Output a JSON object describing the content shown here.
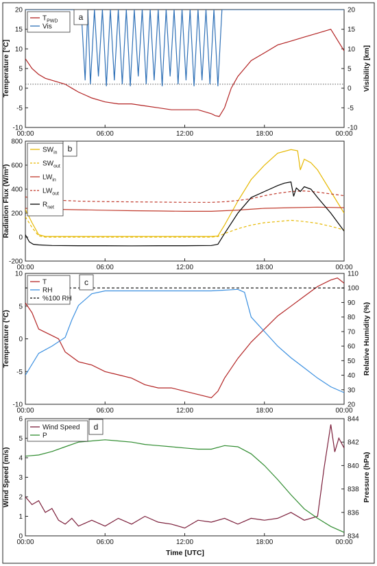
{
  "figure": {
    "xlabel": "Time [UTC]",
    "xticks": [
      "00:00",
      "06:00",
      "12:00",
      "18:00",
      "00:00"
    ]
  },
  "chart_data": [
    {
      "panel": "a",
      "type": "line",
      "ylabel": "Temperature [°C]",
      "ylabel_right": "Visibility [km]",
      "ylim": [
        -10,
        20
      ],
      "ylim_right": [
        -10,
        20
      ],
      "yticks": [
        -10,
        -5,
        0,
        5,
        10,
        15,
        20
      ],
      "yticks_right": [
        -10,
        -5,
        0,
        5,
        10,
        15,
        20
      ],
      "xlim_hours": [
        0,
        24
      ],
      "reference_line": {
        "value": 1,
        "axis": "right",
        "style": "dotted"
      },
      "legend": [
        "T_PWD",
        "Vis"
      ],
      "legend_position": "top-left",
      "series": [
        {
          "name": "T_PWD",
          "axis": "left",
          "color": "#b22222",
          "x": [
            0,
            0.5,
            1,
            1.5,
            2,
            2.5,
            3,
            3.5,
            4,
            5,
            6,
            7,
            8,
            9,
            10,
            11,
            12,
            13,
            14,
            14.3,
            14.6,
            15,
            15.5,
            16,
            16.5,
            17,
            18,
            19,
            20,
            21,
            22,
            23,
            24
          ],
          "y": [
            7.5,
            5,
            3.5,
            2.5,
            2,
            1.5,
            1,
            0,
            -1,
            -2.5,
            -3.5,
            -4,
            -4,
            -4.5,
            -5,
            -5.5,
            -5.5,
            -5.5,
            -6.5,
            -7,
            -7.2,
            -5,
            0,
            3,
            5,
            7,
            9,
            11,
            12,
            13,
            14,
            15,
            9.5
          ]
        },
        {
          "name": "Vis",
          "axis": "right",
          "color": "#2d6fb6",
          "description_note": "",
          "x": [
            0,
            4.2,
            4.5,
            4.7,
            4.9,
            5.2,
            5.5,
            5.8,
            6.1,
            6.4,
            6.7,
            7,
            7.3,
            7.6,
            7.9,
            8.2,
            8.5,
            8.8,
            9.1,
            9.4,
            9.7,
            10,
            10.3,
            10.6,
            10.9,
            11.2,
            11.5,
            11.8,
            12.1,
            12.4,
            12.7,
            13,
            13.3,
            13.6,
            13.9,
            14.2,
            14.5,
            14.8,
            15,
            24
          ],
          "y": [
            20,
            20,
            2,
            20,
            1,
            20,
            3,
            20,
            0.5,
            20,
            2,
            20,
            1,
            20,
            0.5,
            20,
            3,
            20,
            1,
            20,
            2,
            20,
            0.5,
            20,
            3,
            20,
            1,
            20,
            2,
            20,
            0.5,
            20,
            2,
            20,
            1,
            20,
            0.5,
            20,
            20,
            20
          ]
        }
      ]
    },
    {
      "panel": "b",
      "type": "line",
      "ylabel": "Radiation Flux (W/m²)",
      "ylim": [
        -200,
        800
      ],
      "yticks": [
        -200,
        0,
        200,
        400,
        600,
        800
      ],
      "xlim_hours": [
        0,
        24
      ],
      "legend": [
        "SW_in",
        "SW_out",
        "LW_in",
        "LW_out",
        "R_net"
      ],
      "legend_position": "top-left",
      "series": [
        {
          "name": "SW_in",
          "color": "#e6b800",
          "style": "solid",
          "x": [
            0,
            0.5,
            1,
            1.5,
            14,
            14.5,
            15,
            16,
            17,
            18,
            19,
            20,
            20.5,
            20.7,
            21,
            21.5,
            22,
            23,
            24
          ],
          "y": [
            230,
            120,
            20,
            5,
            5,
            10,
            100,
            300,
            480,
            600,
            700,
            730,
            720,
            560,
            650,
            620,
            560,
            380,
            200
          ]
        },
        {
          "name": "SW_out",
          "color": "#e6b800",
          "style": "dashed",
          "x": [
            0,
            0.5,
            1,
            1.5,
            14,
            14.5,
            15,
            16,
            17,
            18,
            19,
            20,
            21,
            22,
            23,
            24
          ],
          "y": [
            170,
            80,
            10,
            0,
            0,
            5,
            30,
            70,
            100,
            120,
            130,
            140,
            130,
            115,
            90,
            60
          ]
        },
        {
          "name": "LW_in",
          "color": "#c0392b",
          "style": "solid",
          "x": [
            0,
            2,
            4,
            6,
            8,
            10,
            12,
            14,
            16,
            18,
            20,
            22,
            24
          ],
          "y": [
            240,
            232,
            228,
            224,
            220,
            218,
            215,
            215,
            225,
            240,
            245,
            250,
            245
          ]
        },
        {
          "name": "LW_out",
          "color": "#c0392b",
          "style": "dashed",
          "x": [
            0,
            1,
            2,
            4,
            6,
            8,
            10,
            12,
            14,
            15,
            16,
            17,
            18,
            19,
            20,
            21,
            22,
            23,
            24
          ],
          "y": [
            335,
            318,
            310,
            300,
            296,
            294,
            292,
            290,
            290,
            295,
            305,
            320,
            345,
            365,
            380,
            385,
            375,
            360,
            345
          ]
        },
        {
          "name": "R_net",
          "color": "#000000",
          "style": "solid",
          "x": [
            0,
            0.3,
            0.6,
            1,
            2,
            4,
            6,
            8,
            10,
            12,
            14,
            14.5,
            15,
            16,
            17,
            18,
            19,
            19.5,
            20,
            20.2,
            20.4,
            20.7,
            21,
            21.5,
            22,
            23,
            24
          ],
          "y": [
            20,
            -40,
            -60,
            -65,
            -70,
            -72,
            -72,
            -73,
            -72,
            -72,
            -70,
            -60,
            30,
            200,
            330,
            380,
            430,
            450,
            460,
            340,
            410,
            380,
            420,
            400,
            330,
            200,
            50
          ]
        }
      ]
    },
    {
      "panel": "c",
      "type": "line",
      "ylabel": "Temperature (°C)",
      "ylabel_right": "Relative Humidity (%)",
      "ylim": [
        -10,
        10
      ],
      "ylim_right": [
        20,
        110
      ],
      "yticks": [
        -10,
        -5,
        0,
        5,
        10
      ],
      "yticks_right": [
        20,
        30,
        40,
        50,
        60,
        70,
        80,
        90,
        100,
        110
      ],
      "xlim_hours": [
        0,
        24
      ],
      "legend": [
        "T",
        "RH",
        "%100 RH"
      ],
      "legend_position": "top-left",
      "series": [
        {
          "name": "T",
          "axis": "left",
          "color": "#b22222",
          "x": [
            0,
            0.5,
            1,
            1.5,
            2,
            2.5,
            3,
            4,
            5,
            6,
            7,
            8,
            9,
            10,
            11,
            12,
            13,
            14,
            14.5,
            15,
            16,
            17,
            18,
            19,
            20,
            21,
            22,
            23,
            23.5,
            24
          ],
          "y": [
            5.5,
            4,
            1.5,
            1,
            0.5,
            0,
            -2,
            -3.5,
            -4,
            -5,
            -5.5,
            -6,
            -7,
            -7.5,
            -7.5,
            -8,
            -8.5,
            -9,
            -8,
            -6,
            -3,
            -0.5,
            1.5,
            3.5,
            5,
            6.5,
            8,
            9,
            9.3,
            8.5
          ]
        },
        {
          "name": "RH",
          "axis": "right",
          "color": "#3a8fe0",
          "x": [
            0,
            1,
            2,
            3,
            3.5,
            4,
            5,
            6,
            8,
            10,
            12,
            14,
            16,
            16.5,
            17,
            17.5,
            18,
            19,
            20,
            21,
            22,
            23,
            24
          ],
          "y": [
            40,
            55,
            60,
            66,
            78,
            88,
            96,
            98,
            98,
            98,
            98,
            98,
            99,
            97,
            80,
            75,
            70,
            60,
            52,
            45,
            38,
            32,
            28
          ]
        },
        {
          "name": "%100 RH",
          "axis": "right",
          "color": "#000000",
          "style": "dashed",
          "x": [
            0,
            24
          ],
          "y": [
            100,
            100
          ]
        }
      ]
    },
    {
      "panel": "d",
      "type": "line",
      "ylabel": "Wind Speed (m/s)",
      "ylabel_right": "Pressure (hPa)",
      "ylim": [
        0,
        6
      ],
      "ylim_right": [
        834,
        844
      ],
      "yticks": [
        0,
        1,
        2,
        3,
        4,
        5,
        6
      ],
      "yticks_right": [
        834,
        836,
        838,
        840,
        842,
        844
      ],
      "xlim_hours": [
        0,
        24
      ],
      "legend": [
        "Wind Speed",
        "P"
      ],
      "legend_position": "top-left",
      "series": [
        {
          "name": "Wind Speed",
          "axis": "left",
          "color": "#7b1e3a",
          "x": [
            0,
            0.5,
            1,
            1.5,
            2,
            2.5,
            3,
            3.5,
            4,
            5,
            6,
            7,
            8,
            9,
            10,
            11,
            12,
            13,
            14,
            15,
            16,
            17,
            18,
            19,
            20,
            21,
            22,
            22.5,
            23,
            23.3,
            23.6,
            24
          ],
          "y": [
            2,
            1.6,
            1.8,
            1.2,
            1.4,
            0.8,
            0.6,
            0.9,
            0.5,
            0.8,
            0.5,
            0.9,
            0.6,
            1,
            0.7,
            0.6,
            0.4,
            0.8,
            0.7,
            0.9,
            0.6,
            0.9,
            0.8,
            0.9,
            1.2,
            0.8,
            1.0,
            3.5,
            5.7,
            4.3,
            5.0,
            4.5
          ]
        },
        {
          "name": "P",
          "axis": "right",
          "color": "#2e8b2e",
          "x": [
            0,
            1,
            2,
            3,
            4,
            5,
            6,
            7,
            8,
            9,
            10,
            11,
            12,
            13,
            14,
            15,
            16,
            17,
            18,
            19,
            20,
            21,
            22,
            23,
            24
          ],
          "y": [
            840.8,
            840.9,
            841.2,
            841.6,
            842,
            842.1,
            842.2,
            842.1,
            842,
            841.8,
            841.7,
            841.6,
            841.5,
            841.4,
            841.4,
            841.7,
            841.6,
            841,
            840,
            838.8,
            837.5,
            836.3,
            835.5,
            834.8,
            834.3
          ]
        }
      ]
    }
  ]
}
